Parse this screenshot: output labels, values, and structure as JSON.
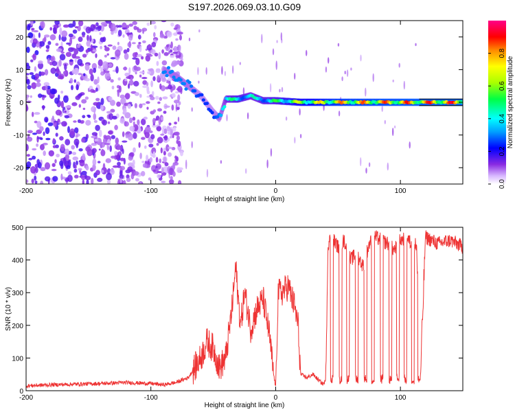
{
  "title": "S197.2026.069.03.10.G09",
  "chart_data": [
    {
      "type": "heatmap",
      "title": "",
      "xlabel": "Height of straight line (km)",
      "ylabel": "Frequency (Hz)",
      "xlim": [
        -200,
        150
      ],
      "ylim": [
        -25,
        25
      ],
      "xticks": [
        -200,
        -100,
        0,
        100
      ],
      "xtick_labels": [
        "-200",
        "-100",
        "0",
        "100"
      ],
      "yticks": [
        -20,
        -10,
        0,
        10,
        20
      ],
      "ytick_labels": [
        "-20",
        "-10",
        "0",
        "10",
        "20"
      ],
      "colorbar": {
        "label": "Normalized spectral amplitude",
        "range": [
          0,
          1
        ],
        "ticks": [
          0.0,
          0.2,
          0.4,
          0.6,
          0.8
        ],
        "tick_labels": [
          "0.0",
          "0.2",
          "0.4",
          "0.6",
          "0.8"
        ]
      },
      "ridge": {
        "description_points_x": [
          -90,
          -80,
          -70,
          -60,
          -50,
          -45,
          -40,
          -30,
          -20,
          -10,
          0,
          20,
          50,
          100,
          150
        ],
        "frequency_y": [
          10,
          8,
          5,
          2,
          -3,
          -5,
          1,
          1,
          2,
          0.5,
          0.5,
          0,
          0,
          0,
          0
        ],
        "amplitude": [
          0.3,
          0.3,
          0.3,
          0.25,
          0.25,
          0.3,
          0.45,
          0.55,
          0.45,
          0.5,
          0.55,
          0.7,
          0.85,
          0.9,
          0.95
        ]
      }
    },
    {
      "type": "line",
      "title": "",
      "xlabel": "Height of straight line (km)",
      "ylabel": "SNR (10 * v/v)",
      "xlim": [
        -200,
        150
      ],
      "ylim": [
        0,
        500
      ],
      "xticks": [
        -200,
        -100,
        0,
        100
      ],
      "xtick_labels": [
        "-200",
        "-100",
        "0",
        "100"
      ],
      "yticks": [
        0,
        100,
        200,
        300,
        400,
        500
      ],
      "ytick_labels": [
        "0",
        "100",
        "200",
        "300",
        "400",
        "500"
      ],
      "series": [
        {
          "name": "SNR",
          "color": "#ee3333",
          "x": [
            -200,
            -180,
            -160,
            -140,
            -120,
            -100,
            -90,
            -80,
            -70,
            -60,
            -55,
            -50,
            -45,
            -40,
            -35,
            -32,
            -30,
            -28,
            -25,
            -22,
            -20,
            -15,
            -10,
            -5,
            -2,
            0,
            2,
            5,
            10,
            15,
            18,
            20,
            25,
            30,
            35,
            38,
            40,
            42,
            45,
            50,
            55,
            60,
            65,
            70,
            75,
            80,
            85,
            90,
            95,
            100,
            105,
            110,
            113,
            116,
            120,
            130,
            140,
            150
          ],
          "y": [
            15,
            18,
            20,
            22,
            25,
            22,
            18,
            25,
            40,
            100,
            150,
            130,
            70,
            100,
            250,
            380,
            280,
            200,
            300,
            240,
            190,
            250,
            280,
            170,
            60,
            10,
            300,
            300,
            320,
            260,
            200,
            50,
            40,
            50,
            30,
            20,
            30,
            450,
            470,
            440,
            460,
            400,
            420,
            380,
            450,
            470,
            460,
            450,
            430,
            460,
            470,
            440,
            450,
            30,
            470,
            450,
            460,
            440
          ]
        }
      ],
      "dropouts_x": [
        45,
        52,
        58,
        65,
        72,
        78,
        85,
        92,
        98,
        104,
        110,
        115
      ]
    }
  ]
}
